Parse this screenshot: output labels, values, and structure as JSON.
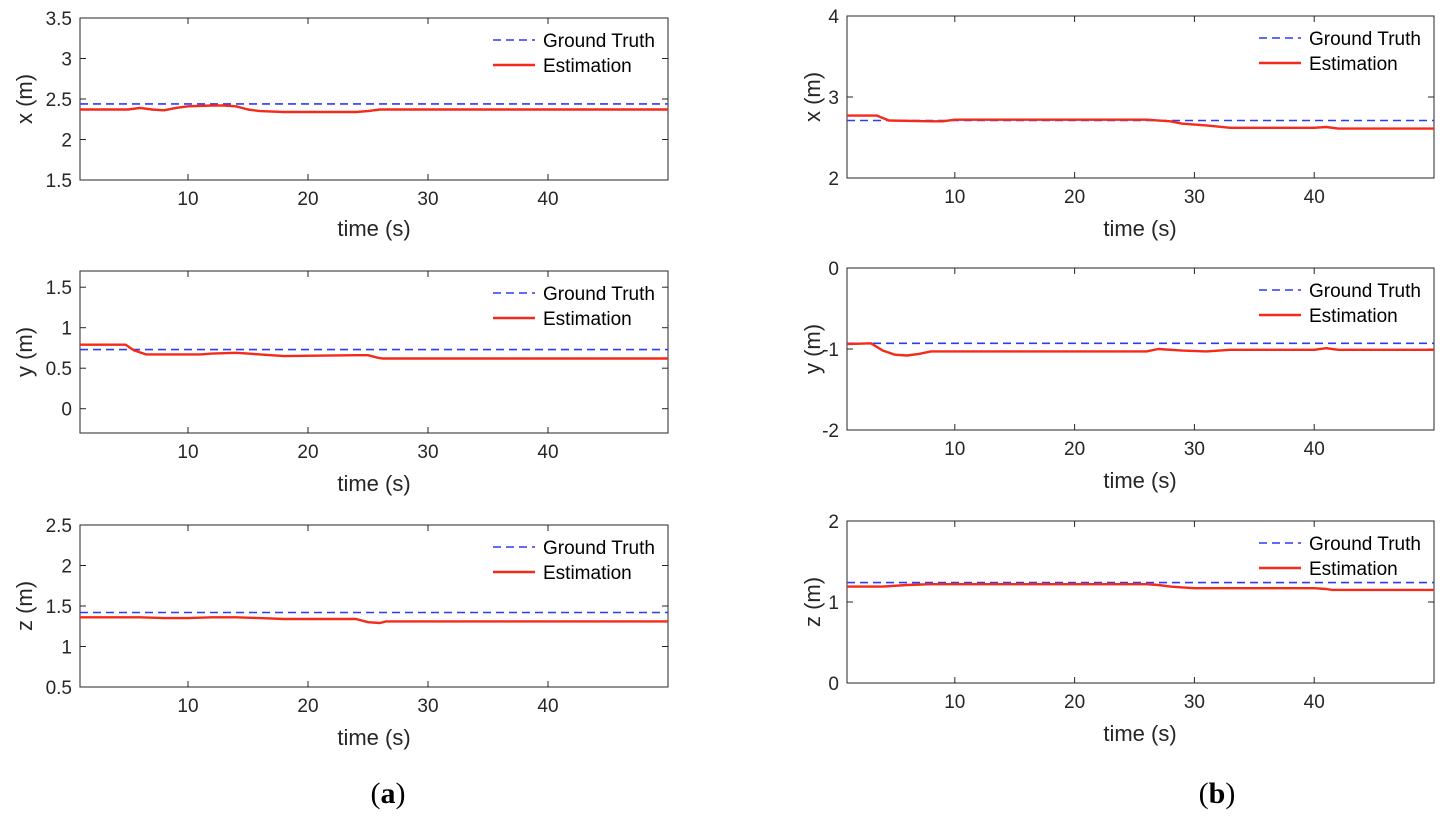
{
  "colors": {
    "ground_truth": "#2b3cf5",
    "estimation": "#f52a1b",
    "axis": "#262626"
  },
  "legend": {
    "ground_truth": "Ground Truth",
    "estimation": "Estimation"
  },
  "captions": [
    {
      "open": "(",
      "letter": "a",
      "close": ")"
    },
    {
      "open": "(",
      "letter": "b",
      "close": ")"
    }
  ],
  "chart_data": [
    {
      "panel": "a",
      "type": "line",
      "xlabel": "time (s)",
      "ylabel": "x (m)",
      "xlim": [
        1,
        50
      ],
      "ylim": [
        1.5,
        3.5
      ],
      "xticks": [
        10,
        20,
        30,
        40
      ],
      "yticks": [
        1.5,
        2,
        2.5,
        3,
        3.5
      ],
      "yticklabels": [
        "1.5",
        "2",
        "2.5",
        "3",
        "3.5"
      ],
      "legend_position": "top-right",
      "series": [
        {
          "name": "Ground Truth",
          "style": "dashed",
          "x": [
            1,
            50
          ],
          "y": [
            2.44,
            2.44
          ]
        },
        {
          "name": "Estimation",
          "style": "solid",
          "x": [
            1,
            5,
            6,
            7,
            8,
            9,
            10,
            12,
            13,
            14,
            15,
            16,
            18,
            24,
            25,
            26,
            50
          ],
          "y": [
            2.37,
            2.37,
            2.39,
            2.37,
            2.36,
            2.39,
            2.41,
            2.42,
            2.42,
            2.41,
            2.37,
            2.35,
            2.34,
            2.34,
            2.35,
            2.37,
            2.37
          ]
        }
      ]
    },
    {
      "panel": "a",
      "type": "line",
      "xlabel": "time (s)",
      "ylabel": "y (m)",
      "xlim": [
        1,
        50
      ],
      "ylim": [
        -0.3,
        1.7
      ],
      "xticks": [
        10,
        20,
        30,
        40
      ],
      "yticks": [
        0,
        0.5,
        1,
        1.5
      ],
      "yticklabels": [
        "0",
        "0.5",
        "1",
        "1.5"
      ],
      "legend_position": "top-right",
      "series": [
        {
          "name": "Ground Truth",
          "style": "dashed",
          "x": [
            1,
            50
          ],
          "y": [
            0.73,
            0.73
          ]
        },
        {
          "name": "Estimation",
          "style": "solid",
          "x": [
            1,
            4.8,
            5.5,
            6.5,
            8,
            10,
            11,
            12,
            14,
            15,
            16,
            18,
            24,
            25,
            25.8,
            26.2,
            50
          ],
          "y": [
            0.79,
            0.79,
            0.72,
            0.67,
            0.67,
            0.67,
            0.67,
            0.68,
            0.69,
            0.68,
            0.67,
            0.65,
            0.66,
            0.66,
            0.63,
            0.62,
            0.62
          ]
        }
      ]
    },
    {
      "panel": "a",
      "type": "line",
      "xlabel": "time (s)",
      "ylabel": "z (m)",
      "xlim": [
        1,
        50
      ],
      "ylim": [
        0.5,
        2.5
      ],
      "xticks": [
        10,
        20,
        30,
        40
      ],
      "yticks": [
        0.5,
        1,
        1.5,
        2,
        2.5
      ],
      "yticklabels": [
        "0.5",
        "1",
        "1.5",
        "2",
        "2.5"
      ],
      "legend_position": "top-right",
      "series": [
        {
          "name": "Ground Truth",
          "style": "dashed",
          "x": [
            1,
            50
          ],
          "y": [
            1.42,
            1.42
          ]
        },
        {
          "name": "Estimation",
          "style": "solid",
          "x": [
            1,
            6,
            8,
            10,
            12,
            14,
            16,
            18,
            24,
            25,
            26,
            26.5,
            50
          ],
          "y": [
            1.36,
            1.36,
            1.35,
            1.35,
            1.36,
            1.36,
            1.35,
            1.34,
            1.34,
            1.3,
            1.29,
            1.31,
            1.31
          ]
        }
      ]
    },
    {
      "panel": "b",
      "type": "line",
      "xlabel": "time (s)",
      "ylabel": "x (m)",
      "xlim": [
        1,
        50
      ],
      "ylim": [
        2,
        4
      ],
      "xticks": [
        10,
        20,
        30,
        40
      ],
      "yticks": [
        2,
        3,
        4
      ],
      "yticklabels": [
        "2",
        "3",
        "4"
      ],
      "legend_position": "top-right",
      "series": [
        {
          "name": "Ground Truth",
          "style": "dashed",
          "x": [
            1,
            50
          ],
          "y": [
            2.71,
            2.71
          ]
        },
        {
          "name": "Estimation",
          "style": "solid",
          "x": [
            1,
            3.5,
            4.5,
            8,
            9,
            10,
            26,
            28,
            29,
            31,
            33,
            34,
            40,
            41,
            42,
            50
          ],
          "y": [
            2.77,
            2.77,
            2.71,
            2.7,
            2.7,
            2.72,
            2.72,
            2.7,
            2.67,
            2.65,
            2.62,
            2.62,
            2.62,
            2.63,
            2.61,
            2.61
          ]
        }
      ]
    },
    {
      "panel": "b",
      "type": "line",
      "xlabel": "time (s)",
      "ylabel": "y (m)",
      "xlim": [
        1,
        50
      ],
      "ylim": [
        -2,
        0
      ],
      "xticks": [
        10,
        20,
        30,
        40
      ],
      "yticks": [
        -2,
        -1,
        0
      ],
      "yticklabels": [
        "-2",
        "-1",
        "0"
      ],
      "legend_position": "top-right",
      "series": [
        {
          "name": "Ground Truth",
          "style": "dashed",
          "x": [
            1,
            50
          ],
          "y": [
            -0.93,
            -0.93
          ]
        },
        {
          "name": "Estimation",
          "style": "solid",
          "x": [
            1,
            3,
            4,
            5,
            6,
            7,
            8,
            9,
            26,
            27,
            29,
            31,
            33,
            34,
            40,
            41,
            42,
            50
          ],
          "y": [
            -0.94,
            -0.93,
            -1.02,
            -1.07,
            -1.08,
            -1.06,
            -1.03,
            -1.03,
            -1.03,
            -1.0,
            -1.02,
            -1.03,
            -1.01,
            -1.01,
            -1.01,
            -0.99,
            -1.01,
            -1.01
          ]
        }
      ]
    },
    {
      "panel": "b",
      "type": "line",
      "xlabel": "time (s)",
      "ylabel": "z (m)",
      "xlim": [
        1,
        50
      ],
      "ylim": [
        0,
        2
      ],
      "xticks": [
        10,
        20,
        30,
        40
      ],
      "yticks": [
        0,
        1,
        2
      ],
      "yticklabels": [
        "0",
        "1",
        "2"
      ],
      "legend_position": "top-right",
      "series": [
        {
          "name": "Ground Truth",
          "style": "dashed",
          "x": [
            1,
            50
          ],
          "y": [
            1.24,
            1.24
          ]
        },
        {
          "name": "Estimation",
          "style": "solid",
          "x": [
            1,
            4,
            6,
            8,
            10,
            26,
            27,
            28,
            29,
            30,
            40,
            41,
            41.5,
            50
          ],
          "y": [
            1.19,
            1.19,
            1.21,
            1.22,
            1.22,
            1.22,
            1.21,
            1.19,
            1.18,
            1.17,
            1.17,
            1.16,
            1.15,
            1.15
          ]
        }
      ]
    }
  ]
}
